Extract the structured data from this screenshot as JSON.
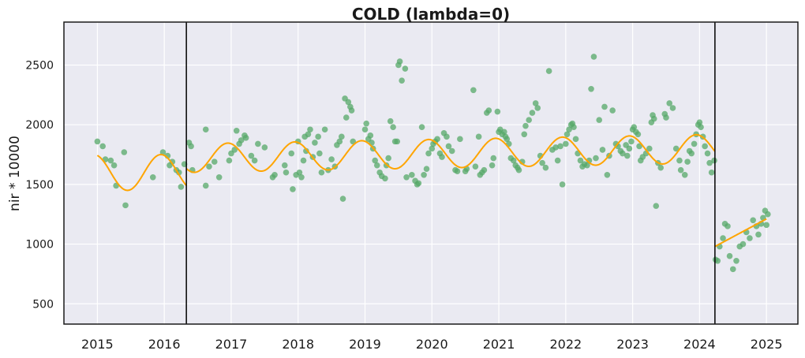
{
  "chart_data": {
    "type": "scatter",
    "title": "COLD (lambda=0)",
    "xlabel": "",
    "ylabel": "nir * 10000",
    "xlim": [
      2014.5,
      2025.47
    ],
    "ylim": [
      330,
      2860
    ],
    "x_ticks": [
      "2015",
      "2016",
      "2017",
      "2018",
      "2019",
      "2020",
      "2021",
      "2022",
      "2023",
      "2024",
      "2025"
    ],
    "y_ticks": [
      "500",
      "1000",
      "1500",
      "2000",
      "2500"
    ],
    "grid": true,
    "background": "#EAEAF2",
    "colors": {
      "points": "#55A868",
      "fit": "#FFA500",
      "breaks": "#000000"
    },
    "breaks": [
      2016.33,
      2024.23
    ],
    "series": [
      {
        "kind": "scatter",
        "points": [
          [
            2015.0,
            1860
          ],
          [
            2015.08,
            1820
          ],
          [
            2015.12,
            1710
          ],
          [
            2015.2,
            1700
          ],
          [
            2015.25,
            1660
          ],
          [
            2015.28,
            1490
          ],
          [
            2015.4,
            1770
          ],
          [
            2015.42,
            1325
          ],
          [
            2015.83,
            1560
          ],
          [
            2015.98,
            1770
          ],
          [
            2016.05,
            1740
          ],
          [
            2016.08,
            1660
          ],
          [
            2016.12,
            1690
          ],
          [
            2016.18,
            1620
          ],
          [
            2016.22,
            1600
          ],
          [
            2016.25,
            1480
          ],
          [
            2016.3,
            1670
          ],
          [
            2016.37,
            1850
          ],
          [
            2016.4,
            1820
          ],
          [
            2016.42,
            1620
          ],
          [
            2016.62,
            1960
          ],
          [
            2016.67,
            1650
          ],
          [
            2016.75,
            1690
          ],
          [
            2016.82,
            1560
          ],
          [
            2016.62,
            1490
          ],
          [
            2016.97,
            1700
          ],
          [
            2017.0,
            1760
          ],
          [
            2017.05,
            1790
          ],
          [
            2017.08,
            1950
          ],
          [
            2017.12,
            1840
          ],
          [
            2017.15,
            1870
          ],
          [
            2017.2,
            1910
          ],
          [
            2017.22,
            1890
          ],
          [
            2017.3,
            1740
          ],
          [
            2017.35,
            1700
          ],
          [
            2017.4,
            1840
          ],
          [
            2017.5,
            1810
          ],
          [
            2017.62,
            1560
          ],
          [
            2017.65,
            1580
          ],
          [
            2017.8,
            1660
          ],
          [
            2017.82,
            1600
          ],
          [
            2017.9,
            1760
          ],
          [
            2017.92,
            1460
          ],
          [
            2017.97,
            1580
          ],
          [
            2018.0,
            1860
          ],
          [
            2018.02,
            1600
          ],
          [
            2018.05,
            1560
          ],
          [
            2018.08,
            1700
          ],
          [
            2018.1,
            1900
          ],
          [
            2018.12,
            1780
          ],
          [
            2018.15,
            1920
          ],
          [
            2018.18,
            1960
          ],
          [
            2018.22,
            1730
          ],
          [
            2018.25,
            1850
          ],
          [
            2018.3,
            1900
          ],
          [
            2018.32,
            1760
          ],
          [
            2018.35,
            1600
          ],
          [
            2018.4,
            1960
          ],
          [
            2018.45,
            1620
          ],
          [
            2018.5,
            1710
          ],
          [
            2018.55,
            1650
          ],
          [
            2018.58,
            1830
          ],
          [
            2018.62,
            1860
          ],
          [
            2018.65,
            1900
          ],
          [
            2018.67,
            1380
          ],
          [
            2018.7,
            2220
          ],
          [
            2018.72,
            2060
          ],
          [
            2018.75,
            2190
          ],
          [
            2018.78,
            2150
          ],
          [
            2018.8,
            2120
          ],
          [
            2018.82,
            1860
          ],
          [
            2019.0,
            1960
          ],
          [
            2019.02,
            2010
          ],
          [
            2019.05,
            1880
          ],
          [
            2019.08,
            1910
          ],
          [
            2019.1,
            1850
          ],
          [
            2019.12,
            1800
          ],
          [
            2019.15,
            1700
          ],
          [
            2019.18,
            1660
          ],
          [
            2019.22,
            1600
          ],
          [
            2019.25,
            1570
          ],
          [
            2019.3,
            1550
          ],
          [
            2019.32,
            1660
          ],
          [
            2019.35,
            1720
          ],
          [
            2019.38,
            2030
          ],
          [
            2019.42,
            1980
          ],
          [
            2019.45,
            1860
          ],
          [
            2019.48,
            1860
          ],
          [
            2019.5,
            2500
          ],
          [
            2019.52,
            2530
          ],
          [
            2019.55,
            2370
          ],
          [
            2019.6,
            2470
          ],
          [
            2019.62,
            1560
          ],
          [
            2019.7,
            1580
          ],
          [
            2019.75,
            1530
          ],
          [
            2019.78,
            1500
          ],
          [
            2019.8,
            1510
          ],
          [
            2019.85,
            1980
          ],
          [
            2019.88,
            1580
          ],
          [
            2019.92,
            1630
          ],
          [
            2019.95,
            1760
          ],
          [
            2020.0,
            1800
          ],
          [
            2020.02,
            1840
          ],
          [
            2020.05,
            1860
          ],
          [
            2020.08,
            1880
          ],
          [
            2020.12,
            1760
          ],
          [
            2020.15,
            1730
          ],
          [
            2020.18,
            1930
          ],
          [
            2020.22,
            1900
          ],
          [
            2020.25,
            1820
          ],
          [
            2020.3,
            1780
          ],
          [
            2020.35,
            1620
          ],
          [
            2020.38,
            1610
          ],
          [
            2020.42,
            1880
          ],
          [
            2020.5,
            1610
          ],
          [
            2020.62,
            2290
          ],
          [
            2020.65,
            1650
          ],
          [
            2020.7,
            1900
          ],
          [
            2020.75,
            1600
          ],
          [
            2020.78,
            1620
          ],
          [
            2020.82,
            2100
          ],
          [
            2020.85,
            2120
          ],
          [
            2020.9,
            1660
          ],
          [
            2020.92,
            1720
          ],
          [
            2020.98,
            2110
          ],
          [
            2020.52,
            1630
          ],
          [
            2020.72,
            1580
          ],
          [
            2021.0,
            1940
          ],
          [
            2021.02,
            1960
          ],
          [
            2021.05,
            1920
          ],
          [
            2021.08,
            1940
          ],
          [
            2021.1,
            1900
          ],
          [
            2021.12,
            1880
          ],
          [
            2021.15,
            1840
          ],
          [
            2021.18,
            1720
          ],
          [
            2021.22,
            1700
          ],
          [
            2021.25,
            1660
          ],
          [
            2021.28,
            1640
          ],
          [
            2021.3,
            1620
          ],
          [
            2021.35,
            1690
          ],
          [
            2021.38,
            1920
          ],
          [
            2021.4,
            1990
          ],
          [
            2021.45,
            2040
          ],
          [
            2021.5,
            2100
          ],
          [
            2021.55,
            2180
          ],
          [
            2021.58,
            2140
          ],
          [
            2021.62,
            1740
          ],
          [
            2021.65,
            1680
          ],
          [
            2021.7,
            1640
          ],
          [
            2021.75,
            2450
          ],
          [
            2021.8,
            1790
          ],
          [
            2021.85,
            1810
          ],
          [
            2021.88,
            1700
          ],
          [
            2021.92,
            1820
          ],
          [
            2021.95,
            1500
          ],
          [
            2022.0,
            1840
          ],
          [
            2022.02,
            1920
          ],
          [
            2022.05,
            1960
          ],
          [
            2022.08,
            2000
          ],
          [
            2022.1,
            2010
          ],
          [
            2022.12,
            1980
          ],
          [
            2022.15,
            1880
          ],
          [
            2022.18,
            1760
          ],
          [
            2022.22,
            1700
          ],
          [
            2022.25,
            1650
          ],
          [
            2022.28,
            1670
          ],
          [
            2022.32,
            1660
          ],
          [
            2022.35,
            1700
          ],
          [
            2022.38,
            2300
          ],
          [
            2022.42,
            2570
          ],
          [
            2022.45,
            1720
          ],
          [
            2022.5,
            2040
          ],
          [
            2022.55,
            1790
          ],
          [
            2022.58,
            2150
          ],
          [
            2022.62,
            1580
          ],
          [
            2022.65,
            1740
          ],
          [
            2022.7,
            2120
          ],
          [
            2022.75,
            1840
          ],
          [
            2022.78,
            1820
          ],
          [
            2022.82,
            1780
          ],
          [
            2022.85,
            1760
          ],
          [
            2022.9,
            1830
          ],
          [
            2022.92,
            1740
          ],
          [
            2022.95,
            1800
          ],
          [
            2022.98,
            1860
          ],
          [
            2023.0,
            1960
          ],
          [
            2023.02,
            1980
          ],
          [
            2023.05,
            1940
          ],
          [
            2023.08,
            1920
          ],
          [
            2023.1,
            1820
          ],
          [
            2023.12,
            1700
          ],
          [
            2023.15,
            1730
          ],
          [
            2023.2,
            1760
          ],
          [
            2023.25,
            1800
          ],
          [
            2023.28,
            2020
          ],
          [
            2023.3,
            2080
          ],
          [
            2023.32,
            2050
          ],
          [
            2023.35,
            1320
          ],
          [
            2023.38,
            1680
          ],
          [
            2023.42,
            1640
          ],
          [
            2023.48,
            2090
          ],
          [
            2023.5,
            2060
          ],
          [
            2023.55,
            2180
          ],
          [
            2023.6,
            2140
          ],
          [
            2023.65,
            1800
          ],
          [
            2023.7,
            1700
          ],
          [
            2023.72,
            1620
          ],
          [
            2023.78,
            1580
          ],
          [
            2023.82,
            1690
          ],
          [
            2023.85,
            1780
          ],
          [
            2023.88,
            1760
          ],
          [
            2023.92,
            1840
          ],
          [
            2023.95,
            1920
          ],
          [
            2023.98,
            2000
          ],
          [
            2024.0,
            2020
          ],
          [
            2024.02,
            1980
          ],
          [
            2024.05,
            1900
          ],
          [
            2024.08,
            1820
          ],
          [
            2024.12,
            1760
          ],
          [
            2024.15,
            1680
          ],
          [
            2024.18,
            1600
          ],
          [
            2024.22,
            1700
          ],
          [
            2024.24,
            870
          ],
          [
            2024.27,
            860
          ],
          [
            2024.3,
            980
          ],
          [
            2024.35,
            1050
          ],
          [
            2024.38,
            1170
          ],
          [
            2024.42,
            1150
          ],
          [
            2024.45,
            900
          ],
          [
            2024.5,
            790
          ],
          [
            2024.55,
            860
          ],
          [
            2024.6,
            980
          ],
          [
            2024.65,
            1000
          ],
          [
            2024.7,
            1100
          ],
          [
            2024.75,
            1050
          ],
          [
            2024.8,
            1200
          ],
          [
            2024.85,
            1150
          ],
          [
            2024.88,
            1080
          ],
          [
            2024.92,
            1170
          ],
          [
            2024.95,
            1220
          ],
          [
            2024.98,
            1280
          ],
          [
            2025.0,
            1160
          ],
          [
            2025.02,
            1250
          ]
        ]
      },
      {
        "kind": "fit",
        "segments": [
          {
            "start": 2015.0,
            "end": 2016.33,
            "level": 1600,
            "amplitude": 150,
            "phase": 0.95,
            "trend": 0
          },
          {
            "start": 2016.33,
            "end": 2024.23,
            "level": 1720,
            "amplitude": 120,
            "phase": 0.95,
            "trend": 10
          },
          {
            "start": 2024.23,
            "end": 2025.0,
            "level": 980,
            "amplitude": 0,
            "phase": 0,
            "trend": 300
          }
        ]
      }
    ]
  }
}
